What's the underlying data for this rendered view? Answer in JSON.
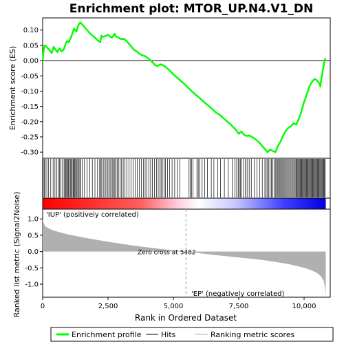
{
  "chart_data": {
    "type": "line",
    "title": "Enrichment plot: MTOR_UP.N4.V1_DN",
    "top_panel": {
      "ylabel": "Enrichment score (ES)",
      "ylim": [
        -0.32,
        0.14
      ],
      "yticks": [
        0.1,
        0.05,
        0.0,
        -0.05,
        -0.1,
        -0.15,
        -0.2,
        -0.25,
        -0.3
      ],
      "ytick_labels": [
        "0.10",
        "0.05",
        "0.00",
        "-0.05",
        "-0.10",
        "-0.15",
        "-0.20",
        "-0.25",
        "-0.30"
      ],
      "series": {
        "name": "Enrichment profile",
        "color": "#00ff00",
        "x": [
          0,
          40,
          80,
          150,
          250,
          350,
          420,
          500,
          560,
          640,
          720,
          800,
          860,
          900,
          950,
          1000,
          1050,
          1080,
          1120,
          1160,
          1200,
          1240,
          1290,
          1340,
          1390,
          1440,
          1500,
          1600,
          1700,
          1800,
          1900,
          2000,
          2100,
          2200,
          2250,
          2300,
          2400,
          2500,
          2560,
          2650,
          2700,
          2750,
          2800,
          2900,
          3000,
          3100,
          3200,
          3300,
          3400,
          3500,
          3600,
          3700,
          3800,
          3900,
          4000,
          4100,
          4200,
          4300,
          4400,
          4500,
          4600,
          4700,
          4800,
          5000,
          5200,
          5400,
          5600,
          5800,
          6000,
          6200,
          6400,
          6600,
          6800,
          7000,
          7200,
          7400,
          7500,
          7600,
          7700,
          7800,
          7900,
          8000,
          8100,
          8200,
          8300,
          8400,
          8500,
          8600,
          8700,
          8800,
          8900,
          9000,
          9100,
          9200,
          9300,
          9400,
          9500,
          9600,
          9700,
          9750,
          9800,
          9850,
          9900,
          9950,
          10000,
          10050,
          10100,
          10150,
          10200,
          10300,
          10400,
          10500,
          10580,
          10620,
          10660,
          10700,
          10740,
          10780,
          10820
        ],
        "y": [
          0.0,
          0.035,
          0.05,
          0.045,
          0.035,
          0.025,
          0.045,
          0.035,
          0.028,
          0.04,
          0.03,
          0.035,
          0.05,
          0.06,
          0.065,
          0.06,
          0.07,
          0.075,
          0.085,
          0.095,
          0.105,
          0.1,
          0.095,
          0.11,
          0.12,
          0.125,
          0.12,
          0.11,
          0.1,
          0.09,
          0.082,
          0.075,
          0.067,
          0.06,
          0.082,
          0.078,
          0.08,
          0.085,
          0.08,
          0.075,
          0.08,
          0.088,
          0.08,
          0.075,
          0.07,
          0.072,
          0.065,
          0.055,
          0.045,
          0.035,
          0.03,
          0.022,
          0.018,
          0.015,
          0.01,
          0.003,
          -0.005,
          -0.015,
          -0.018,
          -0.012,
          -0.015,
          -0.02,
          -0.028,
          -0.045,
          -0.06,
          -0.075,
          -0.092,
          -0.108,
          -0.122,
          -0.138,
          -0.152,
          -0.168,
          -0.18,
          -0.195,
          -0.21,
          -0.228,
          -0.24,
          -0.232,
          -0.243,
          -0.247,
          -0.245,
          -0.25,
          -0.255,
          -0.262,
          -0.27,
          -0.28,
          -0.29,
          -0.3,
          -0.292,
          -0.296,
          -0.3,
          -0.28,
          -0.265,
          -0.245,
          -0.23,
          -0.22,
          -0.215,
          -0.205,
          -0.21,
          -0.2,
          -0.19,
          -0.18,
          -0.165,
          -0.15,
          -0.135,
          -0.125,
          -0.11,
          -0.1,
          -0.085,
          -0.07,
          -0.06,
          -0.065,
          -0.075,
          -0.085,
          -0.06,
          -0.04,
          -0.02,
          0.0,
          0.008
        ]
      }
    },
    "hits_panel": {
      "hit_positions": [
        20,
        60,
        100,
        160,
        230,
        310,
        400,
        470,
        540,
        600,
        650,
        700,
        760,
        820,
        860,
        890,
        920,
        960,
        990,
        1020,
        1060,
        1100,
        1130,
        1170,
        1200,
        1230,
        1260,
        1300,
        1340,
        1380,
        1420,
        1460,
        1520,
        1600,
        1700,
        1800,
        1900,
        2000,
        2100,
        2180,
        2220,
        2260,
        2320,
        2380,
        2420,
        2480,
        2530,
        2580,
        2620,
        2680,
        2720,
        2760,
        2800,
        2850,
        2900,
        2960,
        3020,
        3080,
        3150,
        3220,
        3300,
        3380,
        3460,
        3540,
        3620,
        3700,
        3780,
        3850,
        3920,
        3990,
        4060,
        4130,
        4200,
        4280,
        4350,
        4420,
        4480,
        4530,
        4580,
        4640,
        4700,
        4780,
        4860,
        4950,
        5050,
        5150,
        5250,
        5600,
        5650,
        5700,
        5750,
        5900,
        5950,
        6000,
        6100,
        6200,
        6300,
        6450,
        6550,
        6700,
        6800,
        6950,
        7100,
        7250,
        7350,
        7420,
        7480,
        7520,
        7560,
        7600,
        7680,
        7750,
        7820,
        7900,
        7980,
        8100,
        8200,
        8300,
        8400,
        8500,
        8550,
        8600,
        8650,
        8700,
        8750,
        8800,
        8850,
        8900,
        8940,
        8980,
        9020,
        9060,
        9100,
        9140,
        9180,
        9220,
        9260,
        9300,
        9340,
        9380,
        9420,
        9460,
        9500,
        9540,
        9580,
        9620,
        9660,
        9700,
        9730,
        9760,
        9790,
        9820,
        9850,
        9880,
        9910,
        9940,
        9970,
        10000,
        10030,
        10060,
        10090,
        10120,
        10150,
        10180,
        10210,
        10240,
        10270,
        10300,
        10330,
        10360,
        10390,
        10420,
        10450,
        10480,
        10510,
        10540,
        10570,
        10600,
        10630,
        10660,
        10690,
        10720,
        10750,
        10780,
        10810
      ]
    },
    "metric_panel": {
      "ylabel": "Ranked list metric (Signal2Noise)",
      "ylim": [
        -1.4,
        1.3
      ],
      "yticks": [
        1.0,
        0.5,
        0.0,
        -0.5,
        -1.0
      ],
      "ytick_labels": [
        "1.0",
        "0.5",
        "0.0",
        "-0.5",
        "-1.0"
      ],
      "x": [
        0,
        50,
        100,
        200,
        400,
        700,
        1000,
        1500,
        2000,
        2500,
        3000,
        3500,
        4000,
        4500,
        5000,
        5482,
        6000,
        6500,
        7000,
        7500,
        8000,
        8500,
        9000,
        9500,
        10000,
        10300,
        10500,
        10650,
        10750,
        10800,
        10830
      ],
      "y": [
        1.0,
        0.85,
        0.78,
        0.72,
        0.65,
        0.58,
        0.52,
        0.44,
        0.37,
        0.3,
        0.24,
        0.18,
        0.13,
        0.08,
        0.04,
        0.0,
        -0.05,
        -0.1,
        -0.14,
        -0.18,
        -0.22,
        -0.27,
        -0.33,
        -0.4,
        -0.5,
        -0.58,
        -0.66,
        -0.76,
        -0.9,
        -1.1,
        -1.35
      ],
      "fill_color": "#b0b0b0",
      "zero_cross_label": "Zero cross at 5482",
      "zero_cross_x": 5482,
      "pos_label": "'IUP' (positively correlated)",
      "neg_label": "'EP' (negatively correlated)",
      "pos_color": "#cc0000",
      "neg_color": "#0000cc"
    },
    "xlabel": "Rank in Ordered Dataset",
    "xlim": [
      0,
      11000
    ],
    "xticks": [
      0,
      2500,
      5000,
      7500,
      10000
    ],
    "xtick_labels": [
      "0",
      "2,500",
      "5,000",
      "7,500",
      "10,000"
    ],
    "heatmap_colors": [
      "#ff0000",
      "#ffc0c0",
      "#ffffff",
      "#c0c0ff",
      "#0000ff"
    ],
    "legend": {
      "placement": "bottom",
      "entries": [
        {
          "label": "Enrichment profile",
          "color": "#00ff00",
          "kind": "thick-line"
        },
        {
          "label": "Hits",
          "color": "#000000",
          "kind": "line"
        },
        {
          "label": "Ranking metric scores",
          "color": "#b0b0b0",
          "kind": "line"
        }
      ]
    }
  }
}
